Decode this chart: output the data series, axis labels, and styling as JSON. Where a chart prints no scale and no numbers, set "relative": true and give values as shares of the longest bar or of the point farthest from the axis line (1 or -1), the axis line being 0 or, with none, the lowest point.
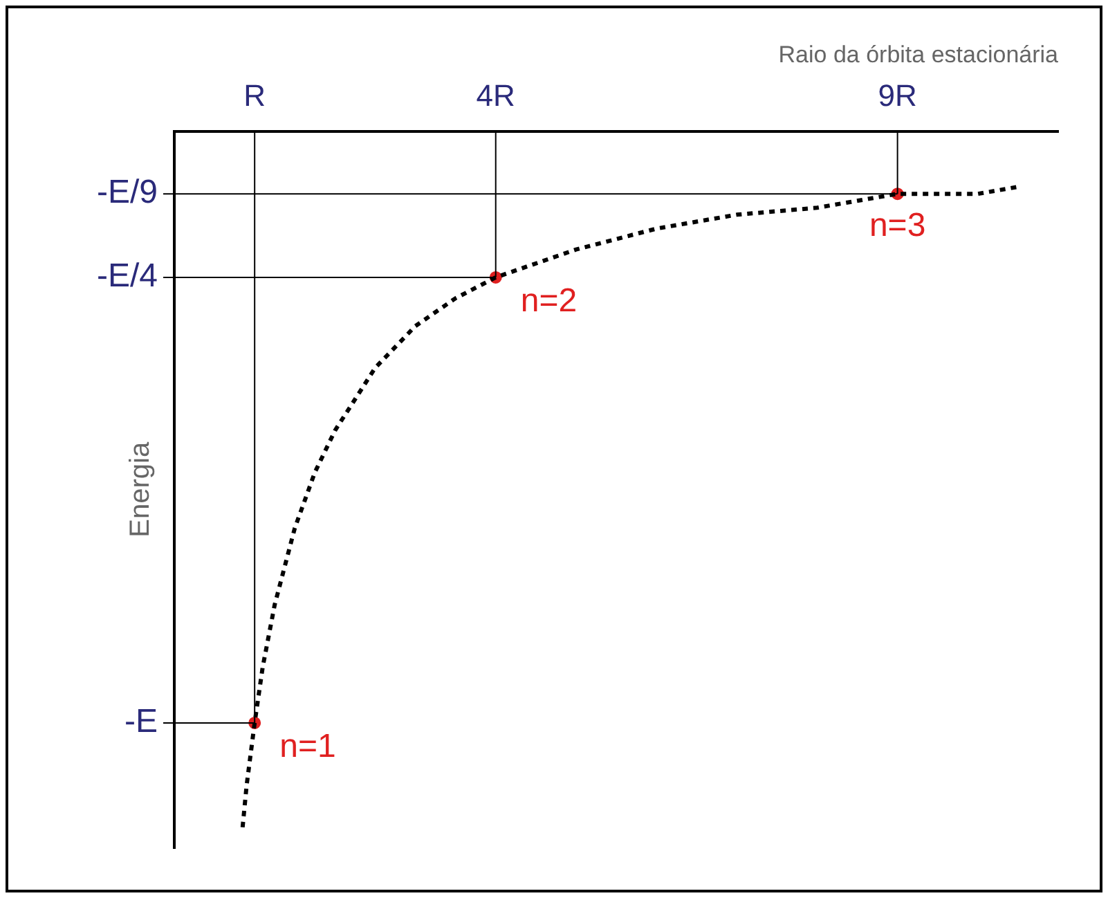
{
  "chart_data": {
    "type": "line",
    "xlabel": "Raio da órbita estacionária",
    "ylabel": "Energia",
    "relative": true,
    "xlim": [
      0,
      11
    ],
    "xticks": [
      {
        "value": 1,
        "label": "R"
      },
      {
        "value": 4,
        "label": "4R"
      },
      {
        "value": 9,
        "label": "9R"
      }
    ],
    "grid": false,
    "legend": false,
    "series": [
      {
        "color": "#000000",
        "marker": "none",
        "line_style": "dotted",
        "x": [
          0.85,
          0.9,
          1,
          1.1,
          1.25,
          1.5,
          1.75,
          2,
          2.5,
          3,
          3.5,
          4,
          5,
          6,
          7,
          8,
          9,
          10,
          10.5
        ],
        "values": [
          -1,
          -0.94,
          -0.85,
          -0.77,
          -0.68,
          -0.57,
          -0.49,
          -0.43,
          -0.34,
          -0.28,
          -0.24,
          -0.21,
          -0.17,
          -0.14,
          -0.12,
          -0.11,
          -0.09,
          -0.09,
          -0.08
        ]
      },
      {
        "type": "scatter",
        "color": "#e02020",
        "marker": "circle",
        "x": [
          1,
          4,
          9
        ],
        "values": [
          -0.85,
          -0.21,
          -0.09
        ]
      }
    ],
    "ref_lines": [
      {
        "axis": "y",
        "value": -0.85,
        "label": "-E"
      },
      {
        "axis": "y",
        "value": -0.21,
        "label": "-E/4"
      },
      {
        "axis": "y",
        "value": -0.09,
        "label": "-E/9"
      },
      {
        "axis": "x",
        "value": 1
      },
      {
        "axis": "x",
        "value": 4
      },
      {
        "axis": "x",
        "value": 9
      }
    ],
    "annotations": [
      {
        "text": "n=1",
        "x": 1,
        "y": -0.85
      },
      {
        "text": "n=2",
        "x": 4,
        "y": -0.21
      },
      {
        "text": "n=3",
        "x": 9,
        "y": -0.09
      }
    ]
  }
}
